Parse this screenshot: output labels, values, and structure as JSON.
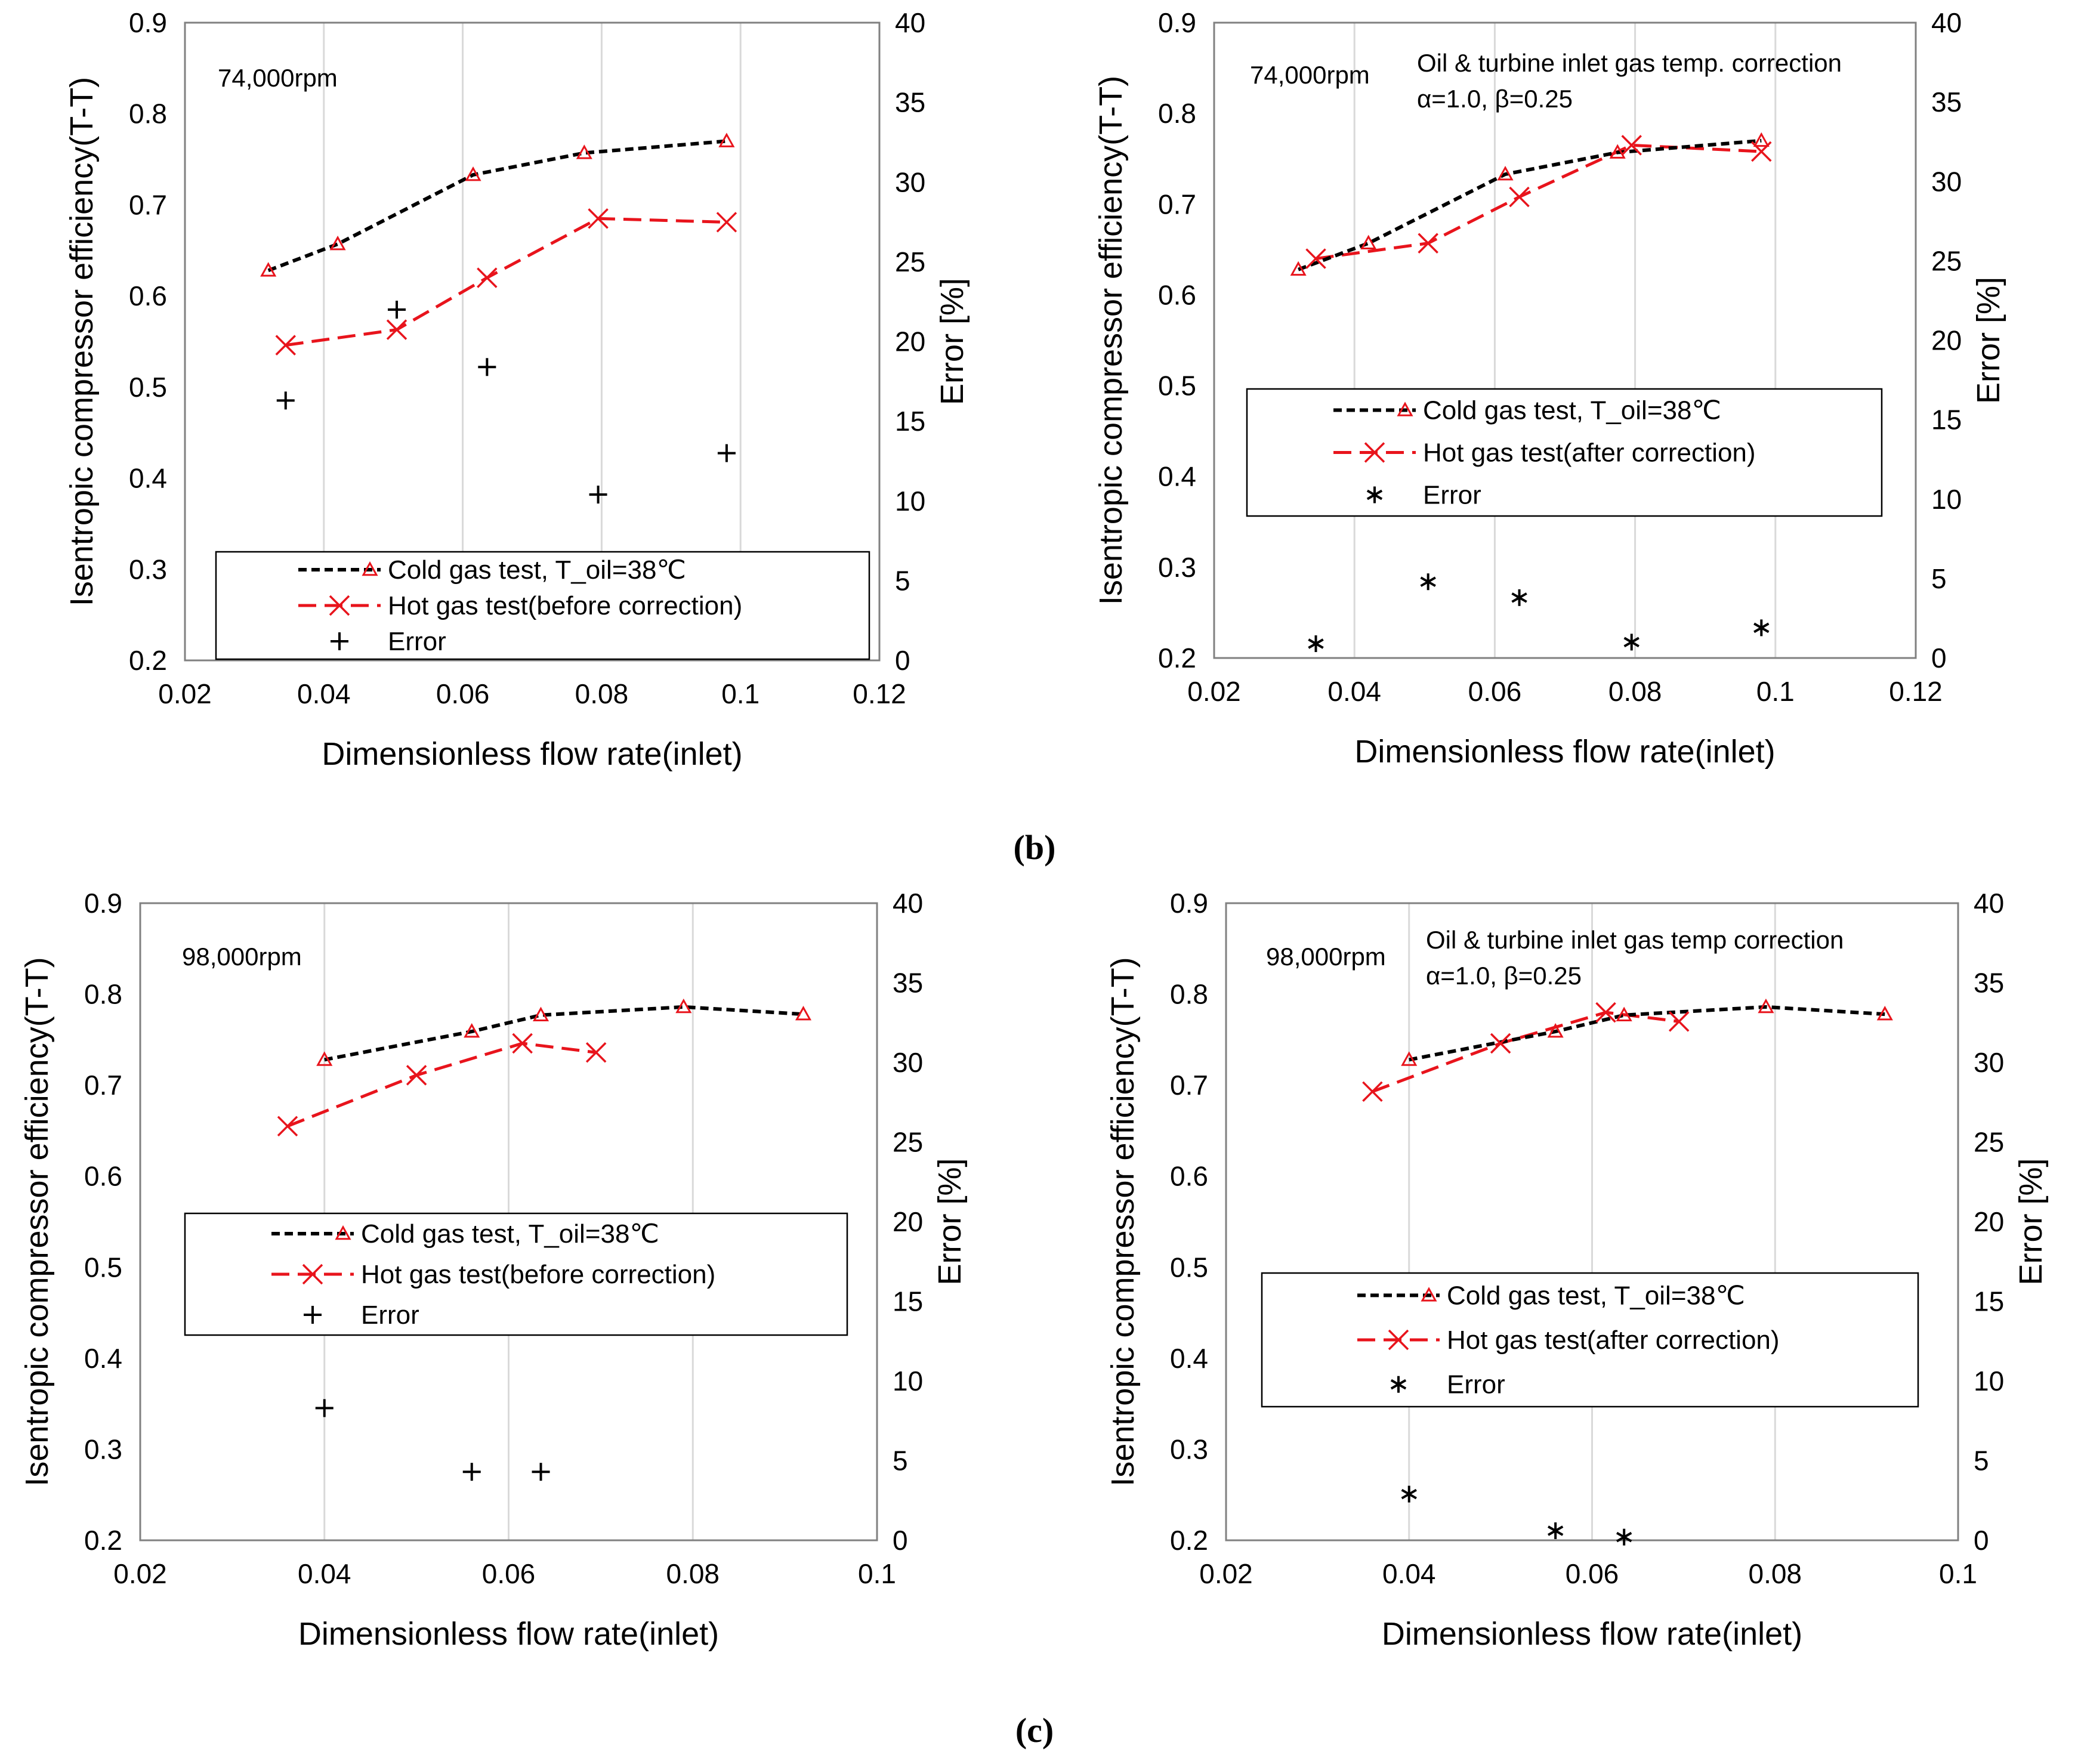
{
  "captions": {
    "b": "(b)",
    "c": "(c)"
  },
  "colors": {
    "cold": "#000000",
    "hot": "#e8141c",
    "grid": "#d9d9d9"
  },
  "chart_data": [
    {
      "id": "b-left",
      "type": "line",
      "xlabel": "Dimensionless flow rate(inlet)",
      "ylabel": "Isentropic compressor  efficiency(T-T)",
      "y2label": "Error [%]",
      "xlim": [
        0.02,
        0.12
      ],
      "ylim": [
        0.2,
        0.9
      ],
      "y2lim": [
        0,
        40
      ],
      "xticks": [
        "0.02",
        "0.04",
        "0.06",
        "0.08",
        "0.1",
        "0.12"
      ],
      "yticks": [
        "0.2",
        "0.3",
        "0.4",
        "0.5",
        "0.6",
        "0.7",
        "0.8",
        "0.9"
      ],
      "y2ticks": [
        "0",
        "5",
        "10",
        "15",
        "20",
        "25",
        "30",
        "35",
        "40"
      ],
      "speed_label": "74,000rpm",
      "note_lines": [],
      "legend": {
        "cold": "Cold gas test, T_oil=38℃",
        "hot": "Hot gas test(before correction)",
        "error": "Error"
      },
      "error_marker": "plus",
      "series": [
        {
          "name": "Cold gas test",
          "key": "cold",
          "x": [
            0.032,
            0.042,
            0.0615,
            0.0775,
            0.098
          ],
          "y": [
            0.628,
            0.657,
            0.733,
            0.757,
            0.77
          ]
        },
        {
          "name": "Hot gas test(before correction)",
          "key": "hot",
          "x": [
            0.0345,
            0.0505,
            0.0635,
            0.0795,
            0.098
          ],
          "y": [
            0.546,
            0.563,
            0.62,
            0.685,
            0.681
          ]
        },
        {
          "name": "Error",
          "key": "error",
          "x": [
            0.0345,
            0.0505,
            0.0635,
            0.0795,
            0.098
          ],
          "y": [
            16.3,
            22.0,
            18.4,
            10.4,
            13.0
          ]
        }
      ]
    },
    {
      "id": "b-right",
      "type": "line",
      "xlabel": "Dimensionless flow rate(inlet)",
      "ylabel": "Isentropic compressor  efficiency(T-T)",
      "y2label": "Error [%]",
      "xlim": [
        0.02,
        0.12
      ],
      "ylim": [
        0.2,
        0.9
      ],
      "y2lim": [
        0,
        40
      ],
      "xticks": [
        "0.02",
        "0.04",
        "0.06",
        "0.08",
        "0.1",
        "0.12"
      ],
      "yticks": [
        "0.2",
        "0.3",
        "0.4",
        "0.5",
        "0.6",
        "0.7",
        "0.8",
        "0.9"
      ],
      "y2ticks": [
        "0",
        "5",
        "10",
        "15",
        "20",
        "25",
        "30",
        "35",
        "40"
      ],
      "speed_label": "74,000rpm",
      "note_lines": [
        "Oil & turbine inlet gas temp. correction",
        "α=1.0, β=0.25"
      ],
      "legend": {
        "cold": "Cold gas test, T_oil=38℃",
        "hot": "Hot gas test(after correction)",
        "error": "Error"
      },
      "error_marker": "asterisk",
      "series": [
        {
          "name": "Cold gas test",
          "key": "cold",
          "x": [
            0.032,
            0.042,
            0.0615,
            0.0775,
            0.098
          ],
          "y": [
            0.628,
            0.657,
            0.733,
            0.757,
            0.77
          ]
        },
        {
          "name": "Hot gas test(after correction)",
          "key": "hot",
          "x": [
            0.0345,
            0.0505,
            0.0635,
            0.0795,
            0.098
          ],
          "y": [
            0.64,
            0.657,
            0.708,
            0.765,
            0.758
          ]
        },
        {
          "name": "Error",
          "key": "error",
          "x": [
            0.0345,
            0.0505,
            0.0635,
            0.0795,
            0.098
          ],
          "y": [
            0.9,
            4.8,
            3.8,
            1.0,
            1.9
          ]
        }
      ]
    },
    {
      "id": "c-left",
      "type": "line",
      "xlabel": "Dimensionless flow rate(inlet)",
      "ylabel": "Isentropic compressor  efficiency(T-T)",
      "y2label": "Error [%]",
      "xlim": [
        0.02,
        0.1
      ],
      "ylim": [
        0.2,
        0.9
      ],
      "y2lim": [
        0,
        40
      ],
      "xticks": [
        "0.02",
        "0.04",
        "0.06",
        "0.08",
        "0.1"
      ],
      "yticks": [
        "0.2",
        "0.3",
        "0.4",
        "0.5",
        "0.6",
        "0.7",
        "0.8",
        "0.9"
      ],
      "y2ticks": [
        "0",
        "5",
        "10",
        "15",
        "20",
        "25",
        "30",
        "35",
        "40"
      ],
      "speed_label": "98,000rpm",
      "note_lines": [],
      "legend": {
        "cold": "Cold gas test, T_oil=38℃",
        "hot": "Hot gas test(before correction)",
        "error": "Error"
      },
      "error_marker": "plus",
      "series": [
        {
          "name": "Cold gas test",
          "key": "cold",
          "x": [
            0.04,
            0.056,
            0.0635,
            0.079,
            0.092
          ],
          "y": [
            0.728,
            0.759,
            0.777,
            0.786,
            0.778
          ]
        },
        {
          "name": "Hot gas test(before correction)",
          "key": "hot",
          "x": [
            0.036,
            0.05,
            0.0615,
            0.0695
          ],
          "y": [
            0.655,
            0.711,
            0.746,
            0.736
          ]
        },
        {
          "name": "Error",
          "key": "error",
          "x": [
            0.04,
            0.056,
            0.0635
          ],
          "y": [
            8.3,
            4.3,
            4.3
          ]
        }
      ]
    },
    {
      "id": "c-right",
      "type": "line",
      "xlabel": "Dimensionless flow rate(inlet)",
      "ylabel": "Isentropic compressor  efficiency(T-T)",
      "y2label": "Error [%]",
      "xlim": [
        0.02,
        0.1
      ],
      "ylim": [
        0.2,
        0.9
      ],
      "y2lim": [
        0,
        40
      ],
      "xticks": [
        "0.02",
        "0.04",
        "0.06",
        "0.08",
        "0.1"
      ],
      "yticks": [
        "0.2",
        "0.3",
        "0.4",
        "0.5",
        "0.6",
        "0.7",
        "0.8",
        "0.9"
      ],
      "y2ticks": [
        "0",
        "5",
        "10",
        "15",
        "20",
        "25",
        "30",
        "35",
        "40"
      ],
      "speed_label": "98,000rpm",
      "note_lines": [
        "Oil  & turbine inlet gas temp  correction",
        "α=1.0, β=0.25"
      ],
      "legend": {
        "cold": "Cold gas test, T_oil=38℃",
        "hot": "Hot gas test(after correction)",
        "error": "Error"
      },
      "error_marker": "asterisk",
      "series": [
        {
          "name": "Cold gas test",
          "key": "cold",
          "x": [
            0.04,
            0.056,
            0.0635,
            0.079,
            0.092
          ],
          "y": [
            0.728,
            0.759,
            0.777,
            0.786,
            0.778
          ]
        },
        {
          "name": "Hot gas test(after correction)",
          "key": "hot",
          "x": [
            0.036,
            0.05,
            0.0615,
            0.0695
          ],
          "y": [
            0.693,
            0.746,
            0.78,
            0.77
          ]
        },
        {
          "name": "Error",
          "key": "error",
          "x": [
            0.04,
            0.056,
            0.0635
          ],
          "y": [
            2.9,
            0.6,
            0.2
          ]
        }
      ]
    }
  ]
}
